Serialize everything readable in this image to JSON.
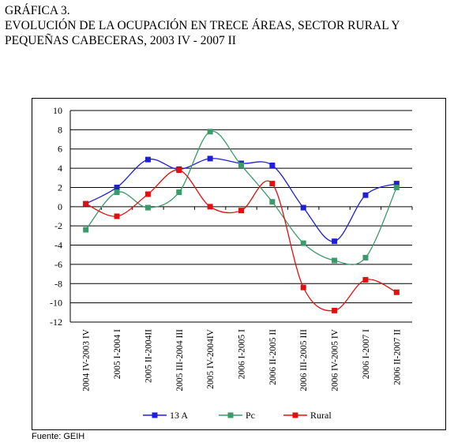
{
  "heading": {
    "label": "GRÁFICA 3.",
    "line1": "EVOLUCIÓN DE LA OCUPACIÓN EN TRECE ÁREAS, SECTOR RURAL Y",
    "line2": "PEQUEÑAS CABECERAS, 2003 IV - 2007 II"
  },
  "source": "Fuente: GEIH",
  "chart_data": {
    "type": "line",
    "title": "",
    "xlabel": "",
    "ylabel": "",
    "ylim": [
      -12,
      10
    ],
    "yticks": [
      10,
      8,
      6,
      4,
      2,
      0,
      -2,
      -4,
      -6,
      -8,
      -10,
      -12
    ],
    "grid": true,
    "smoothed": true,
    "legend_position": "bottom",
    "categories": [
      "2004 IV-2003 IV",
      "2005 I-2004 I",
      "2005 II-2004II",
      "2005 III-2004 III",
      "2005 IV-2004IV",
      "2006 I-2005 I",
      "2006 II-2005 II",
      "2006 III-2005 III",
      "2006 IV-2005 IV",
      "2006 I-2007 I",
      "2006 II-2007 II"
    ],
    "series": [
      {
        "name": "13 A",
        "color": "#1f1fd6",
        "values": [
          0.3,
          2.0,
          4.9,
          3.9,
          5.0,
          4.5,
          4.3,
          -0.1,
          -3.6,
          1.2,
          2.4
        ]
      },
      {
        "name": "Pc",
        "color": "#3a9a6a",
        "values": [
          -2.4,
          1.5,
          -0.1,
          1.5,
          7.8,
          4.3,
          0.5,
          -3.8,
          -5.6,
          -5.3,
          2.0
        ]
      },
      {
        "name": "Rural",
        "color": "#e01010",
        "values": [
          0.3,
          -1.0,
          1.3,
          3.8,
          0.0,
          -0.4,
          2.4,
          -8.4,
          -10.8,
          -7.6,
          -8.9
        ]
      }
    ]
  }
}
